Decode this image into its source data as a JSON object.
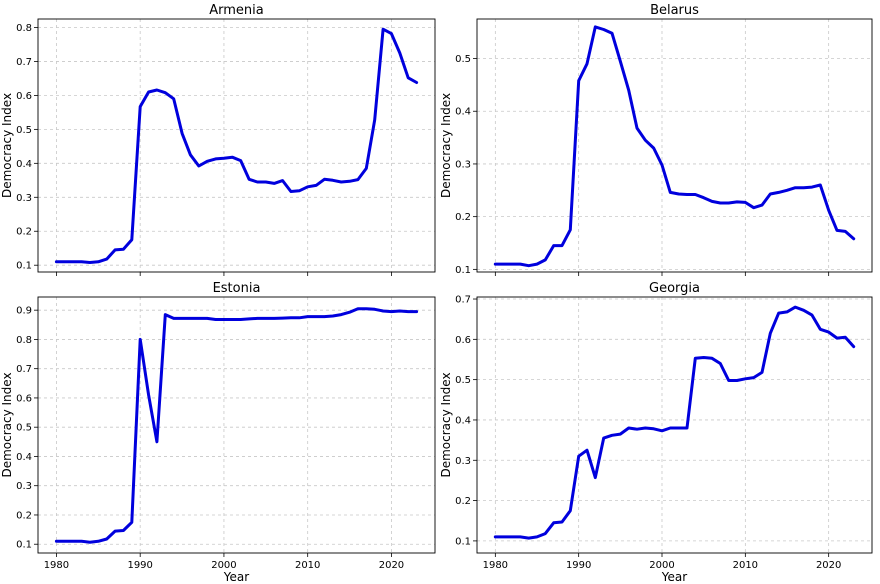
{
  "chart_data": [
    {
      "type": "line",
      "title": "Armenia",
      "xlabel": "",
      "ylabel": "Democracy Index",
      "xlim": [
        1977.8,
        2025.2
      ],
      "ylim": [
        0.08,
        0.825
      ],
      "xticks": [
        1980,
        1990,
        2000,
        2010,
        2020
      ],
      "show_xtick_labels": false,
      "yticks": [
        0.1,
        0.2,
        0.3,
        0.4,
        0.5,
        0.6,
        0.7,
        0.8
      ],
      "grid": true,
      "color": "#0000dd",
      "x": [
        1980,
        1981,
        1982,
        1983,
        1984,
        1985,
        1986,
        1987,
        1988,
        1989,
        1990,
        1991,
        1992,
        1993,
        1994,
        1995,
        1996,
        1997,
        1998,
        1999,
        2000,
        2001,
        2002,
        2003,
        2004,
        2005,
        2006,
        2007,
        2008,
        2009,
        2010,
        2011,
        2012,
        2013,
        2014,
        2015,
        2016,
        2017,
        2018,
        2019,
        2020,
        2021,
        2022,
        2023
      ],
      "y": [
        0.11,
        0.11,
        0.11,
        0.11,
        0.108,
        0.11,
        0.118,
        0.145,
        0.147,
        0.175,
        0.567,
        0.61,
        0.616,
        0.608,
        0.59,
        0.488,
        0.425,
        0.392,
        0.406,
        0.413,
        0.415,
        0.418,
        0.408,
        0.353,
        0.345,
        0.345,
        0.341,
        0.349,
        0.317,
        0.319,
        0.331,
        0.335,
        0.353,
        0.35,
        0.345,
        0.347,
        0.352,
        0.385,
        0.528,
        0.795,
        0.782,
        0.725,
        0.652,
        0.638
      ]
    },
    {
      "type": "line",
      "title": "Belarus",
      "xlabel": "",
      "ylabel": "Democracy Index",
      "xlim": [
        1977.8,
        2025.2
      ],
      "ylim": [
        0.095,
        0.575
      ],
      "xticks": [
        1980,
        1990,
        2000,
        2010,
        2020
      ],
      "show_xtick_labels": false,
      "yticks": [
        0.1,
        0.2,
        0.3,
        0.4,
        0.5
      ],
      "grid": true,
      "color": "#0000dd",
      "x": [
        1980,
        1981,
        1982,
        1983,
        1984,
        1985,
        1986,
        1987,
        1988,
        1989,
        1990,
        1991,
        1992,
        1993,
        1994,
        1995,
        1996,
        1997,
        1998,
        1999,
        2000,
        2001,
        2002,
        2003,
        2004,
        2005,
        2006,
        2007,
        2008,
        2009,
        2010,
        2011,
        2012,
        2013,
        2014,
        2015,
        2016,
        2017,
        2018,
        2019,
        2020,
        2021,
        2022,
        2023
      ],
      "y": [
        0.11,
        0.11,
        0.11,
        0.11,
        0.107,
        0.11,
        0.118,
        0.145,
        0.145,
        0.175,
        0.458,
        0.49,
        0.56,
        0.555,
        0.548,
        0.495,
        0.44,
        0.368,
        0.345,
        0.33,
        0.298,
        0.246,
        0.243,
        0.242,
        0.242,
        0.236,
        0.229,
        0.226,
        0.226,
        0.228,
        0.227,
        0.217,
        0.222,
        0.243,
        0.246,
        0.25,
        0.255,
        0.255,
        0.256,
        0.26,
        0.212,
        0.174,
        0.172,
        0.158
      ]
    },
    {
      "type": "line",
      "title": "Estonia",
      "xlabel": "Year",
      "ylabel": "Democracy Index",
      "xlim": [
        1977.8,
        2025.2
      ],
      "ylim": [
        0.07,
        0.945
      ],
      "xticks": [
        1980,
        1990,
        2000,
        2010,
        2020
      ],
      "show_xtick_labels": true,
      "yticks": [
        0.1,
        0.2,
        0.3,
        0.4,
        0.5,
        0.6,
        0.7,
        0.8,
        0.9
      ],
      "grid": true,
      "color": "#0000dd",
      "x": [
        1980,
        1981,
        1982,
        1983,
        1984,
        1985,
        1986,
        1987,
        1988,
        1989,
        1990,
        1991,
        1992,
        1993,
        1994,
        1995,
        1996,
        1997,
        1998,
        1999,
        2000,
        2001,
        2002,
        2003,
        2004,
        2005,
        2006,
        2007,
        2008,
        2009,
        2010,
        2011,
        2012,
        2013,
        2014,
        2015,
        2016,
        2017,
        2018,
        2019,
        2020,
        2021,
        2022,
        2023
      ],
      "y": [
        0.11,
        0.11,
        0.11,
        0.11,
        0.107,
        0.11,
        0.118,
        0.145,
        0.147,
        0.175,
        0.8,
        0.61,
        0.45,
        0.885,
        0.872,
        0.872,
        0.872,
        0.872,
        0.872,
        0.868,
        0.868,
        0.868,
        0.868,
        0.87,
        0.872,
        0.872,
        0.872,
        0.873,
        0.874,
        0.874,
        0.878,
        0.878,
        0.878,
        0.88,
        0.885,
        0.893,
        0.905,
        0.905,
        0.903,
        0.897,
        0.895,
        0.897,
        0.895,
        0.895
      ]
    },
    {
      "type": "line",
      "title": "Georgia",
      "xlabel": "Year",
      "ylabel": "Democracy Index",
      "xlim": [
        1977.8,
        2025.2
      ],
      "ylim": [
        0.07,
        0.705
      ],
      "xticks": [
        1980,
        1990,
        2000,
        2010,
        2020
      ],
      "show_xtick_labels": true,
      "yticks": [
        0.1,
        0.2,
        0.3,
        0.4,
        0.5,
        0.6,
        0.7
      ],
      "grid": true,
      "color": "#0000dd",
      "x": [
        1980,
        1981,
        1982,
        1983,
        1984,
        1985,
        1986,
        1987,
        1988,
        1989,
        1990,
        1991,
        1992,
        1993,
        1994,
        1995,
        1996,
        1997,
        1998,
        1999,
        2000,
        2001,
        2002,
        2003,
        2004,
        2005,
        2006,
        2007,
        2008,
        2009,
        2010,
        2011,
        2012,
        2013,
        2014,
        2015,
        2016,
        2017,
        2018,
        2019,
        2020,
        2021,
        2022,
        2023
      ],
      "y": [
        0.11,
        0.11,
        0.11,
        0.11,
        0.107,
        0.11,
        0.118,
        0.145,
        0.147,
        0.175,
        0.31,
        0.325,
        0.257,
        0.355,
        0.362,
        0.365,
        0.38,
        0.377,
        0.38,
        0.378,
        0.373,
        0.38,
        0.38,
        0.38,
        0.553,
        0.555,
        0.553,
        0.54,
        0.498,
        0.498,
        0.502,
        0.505,
        0.518,
        0.615,
        0.665,
        0.668,
        0.68,
        0.672,
        0.66,
        0.625,
        0.618,
        0.603,
        0.605,
        0.582
      ]
    }
  ]
}
